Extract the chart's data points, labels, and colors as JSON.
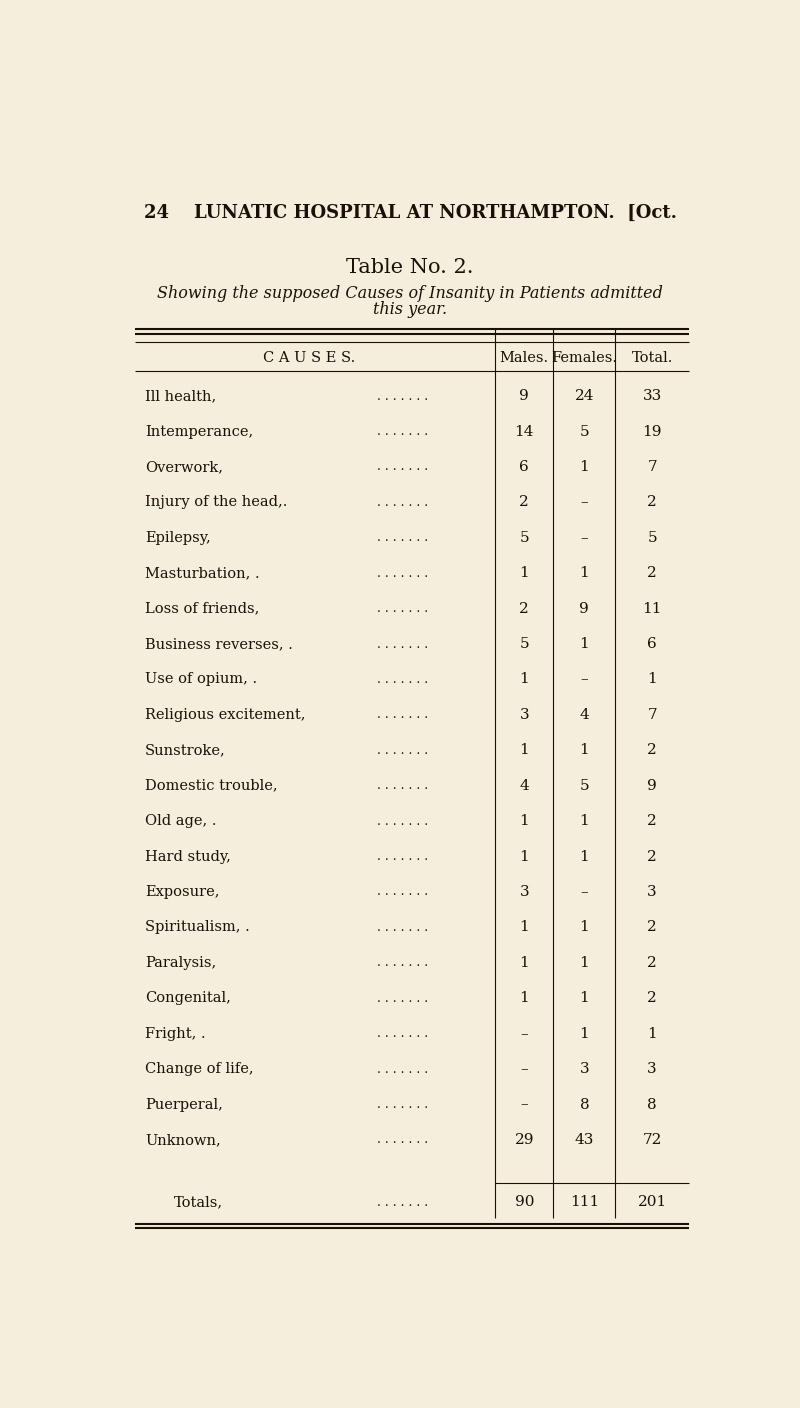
{
  "page_header": "24    LUNATIC HOSPITAL AT NORTHAMPTON.  [Oct.",
  "table_title": "Table No. 2.",
  "table_subtitle_line1": "Showing the supposed Causes of Insanity in Patients admitted",
  "table_subtitle_line2": "this year.",
  "col_header_causes": "C A U S E S.",
  "col_header_males": "Males.",
  "col_header_females": "Females.",
  "col_header_total": "Total.",
  "rows": [
    {
      "cause": "Ill health,",
      "males": "9",
      "females": "24",
      "total": "33"
    },
    {
      "cause": "Intemperance,",
      "males": "14",
      "females": "5",
      "total": "19"
    },
    {
      "cause": "Overwork,",
      "males": "6",
      "females": "1",
      "total": "7"
    },
    {
      "cause": "Injury of the head,.",
      "males": "2",
      "females": "–",
      "total": "2"
    },
    {
      "cause": "Epilepsy,",
      "males": "5",
      "females": "–",
      "total": "5"
    },
    {
      "cause": "Masturbation, .",
      "males": "1",
      "females": "1",
      "total": "2"
    },
    {
      "cause": "Loss of friends,",
      "males": "2",
      "females": "9",
      "total": "11"
    },
    {
      "cause": "Business reverses, .",
      "males": "5",
      "females": "1",
      "total": "6"
    },
    {
      "cause": "Use of opium, .",
      "males": "1",
      "females": "–",
      "total": "1"
    },
    {
      "cause": "Religious excitement,",
      "males": "3",
      "females": "4",
      "total": "7"
    },
    {
      "cause": "Sunstroke,",
      "males": "1",
      "females": "1",
      "total": "2"
    },
    {
      "cause": "Domestic trouble,",
      "males": "4",
      "females": "5",
      "total": "9"
    },
    {
      "cause": "Old age, .",
      "males": "1",
      "females": "1",
      "total": "2"
    },
    {
      "cause": "Hard study,",
      "males": "1",
      "females": "1",
      "total": "2"
    },
    {
      "cause": "Exposure,",
      "males": "3",
      "females": "–",
      "total": "3"
    },
    {
      "cause": "Spiritualism, .",
      "males": "1",
      "females": "1",
      "total": "2"
    },
    {
      "cause": "Paralysis,",
      "males": "1",
      "females": "1",
      "total": "2"
    },
    {
      "cause": "Congenital,",
      "males": "1",
      "females": "1",
      "total": "2"
    },
    {
      "cause": "Fright, .",
      "males": "–",
      "females": "1",
      "total": "1"
    },
    {
      "cause": "Change of life,",
      "males": "–",
      "females": "3",
      "total": "3"
    },
    {
      "cause": "Puerperal,",
      "males": "–",
      "females": "8",
      "total": "8"
    },
    {
      "cause": "Unknown,",
      "males": "29",
      "females": "43",
      "total": "72"
    }
  ],
  "totals_row": {
    "cause": "Totals,",
    "males": "90",
    "females": "111",
    "total": "201"
  },
  "bg_color": "#f5eedc",
  "text_color": "#1a1008",
  "figsize": [
    8.0,
    14.08
  ],
  "dpi": 100
}
